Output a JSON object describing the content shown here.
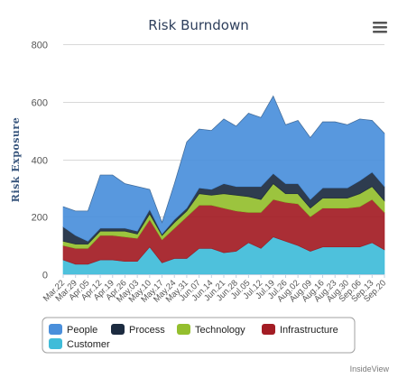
{
  "chart_data": {
    "type": "area",
    "stacked": true,
    "title": "Risk Burndown",
    "ylabel": "Risk Exposure",
    "xlabel": "",
    "ylim": [
      0,
      800
    ],
    "yticks": [
      0,
      200,
      400,
      600,
      800
    ],
    "grid": true,
    "legend_position": "bottom",
    "categories": [
      "Mar.22",
      "Mar.29",
      "Apr.05",
      "Apr.12",
      "Apr.19",
      "Apr.26",
      "May.03",
      "May.10",
      "May.17",
      "May.24",
      "May.31",
      "Jun.07",
      "Jun.14",
      "Jun.21",
      "Jun.28",
      "Jul.05",
      "Jul.12",
      "Jul.19",
      "Jul.26",
      "Aug.02",
      "Aug.09",
      "Aug.16",
      "Aug.23",
      "Aug.30",
      "Sep.06",
      "Sep.13",
      "Sep.20"
    ],
    "series": [
      {
        "name": "Customer",
        "color": "#3fbcd9",
        "values": [
          50,
          35,
          35,
          50,
          50,
          45,
          45,
          95,
          40,
          55,
          55,
          90,
          90,
          75,
          80,
          110,
          90,
          130,
          115,
          100,
          80,
          95,
          95,
          95,
          95,
          110,
          85
        ]
      },
      {
        "name": "Infrastructure",
        "color": "#a31c24",
        "values": [
          50,
          55,
          55,
          85,
          85,
          85,
          80,
          95,
          80,
          105,
          145,
          150,
          150,
          155,
          140,
          105,
          125,
          130,
          135,
          145,
          120,
          135,
          135,
          135,
          140,
          150,
          130
        ]
      },
      {
        "name": "Technology",
        "color": "#94bf2e",
        "values": [
          15,
          15,
          15,
          15,
          15,
          20,
          15,
          20,
          15,
          20,
          20,
          40,
          35,
          50,
          55,
          55,
          45,
          55,
          30,
          35,
          30,
          35,
          35,
          35,
          45,
          45,
          40
        ]
      },
      {
        "name": "Process",
        "color": "#1c2b40",
        "values": [
          50,
          30,
          10,
          10,
          10,
          10,
          10,
          15,
          5,
          10,
          10,
          20,
          20,
          35,
          30,
          35,
          45,
          35,
          35,
          35,
          30,
          35,
          35,
          35,
          45,
          50,
          50
        ]
      },
      {
        "name": "People",
        "color": "#4a8fdb",
        "values": [
          70,
          85,
          105,
          185,
          185,
          155,
          155,
          70,
          40,
          125,
          230,
          205,
          205,
          225,
          210,
          255,
          240,
          270,
          205,
          220,
          215,
          230,
          230,
          220,
          215,
          180,
          185
        ]
      }
    ],
    "legend_order": [
      "People",
      "Process",
      "Technology",
      "Infrastructure",
      "Customer"
    ]
  },
  "credit": "InsideView",
  "menu_icon": "hamburger-menu-icon"
}
